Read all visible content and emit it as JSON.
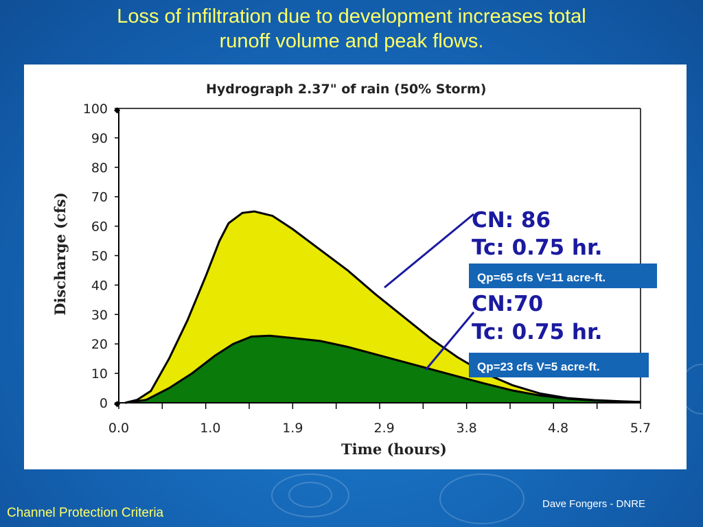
{
  "slide": {
    "title_line1": "Loss of infiltration due to development increases total",
    "title_line2": "runoff volume and peak flows.",
    "footer_left": "Channel Protection Criteria",
    "footer_right": "Dave Fongers - DNRE"
  },
  "colors": {
    "title": "#ffff66",
    "background": "#1565b5",
    "developed_fill": "#e8e800",
    "undeveloped_fill": "#0a7a0a",
    "callout_text": "#1a1aa0",
    "qp_box": "#1565b5"
  },
  "chart_data": {
    "type": "area",
    "title": "Hydrograph     2.37\" of rain (50% Storm)",
    "xlabel": "Time (hours)",
    "ylabel": "Discharge (cfs)",
    "xlim": [
      0,
      5.7
    ],
    "ylim": [
      0,
      100
    ],
    "x_ticks": [
      "0.0",
      "1.0",
      "1.9",
      "2.9",
      "3.8",
      "4.8",
      "5.7"
    ],
    "y_ticks": [
      "0",
      "10",
      "20",
      "30",
      "40",
      "50",
      "60",
      "70",
      "80",
      "90",
      "100"
    ],
    "grid": false,
    "series": [
      {
        "name": "CN: 86",
        "x": [
          0.07,
          0.2,
          0.35,
          0.55,
          0.75,
          0.95,
          1.1,
          1.2,
          1.35,
          1.48,
          1.68,
          1.9,
          2.2,
          2.5,
          2.8,
          3.1,
          3.4,
          3.7,
          4.0,
          4.3,
          4.6,
          4.9,
          5.2,
          5.5,
          5.7
        ],
        "y": [
          0,
          1,
          4,
          15,
          28,
          43,
          55,
          61,
          64.5,
          65,
          63.5,
          59,
          52,
          45,
          37,
          29.5,
          22,
          15.5,
          10,
          6,
          3.2,
          1.6,
          0.9,
          0.5,
          0.3
        ]
      },
      {
        "name": "CN:70",
        "x": [
          0.07,
          0.3,
          0.55,
          0.8,
          1.05,
          1.25,
          1.45,
          1.65,
          1.9,
          2.2,
          2.5,
          2.8,
          3.1,
          3.4,
          3.7,
          4.0,
          4.3,
          4.6,
          4.9,
          5.2,
          5.5,
          5.7
        ],
        "y": [
          0,
          1,
          5,
          10,
          16,
          20,
          22.5,
          22.8,
          22,
          21,
          19,
          16.5,
          14,
          11.5,
          9,
          6.5,
          4.2,
          2.5,
          1.4,
          0.8,
          0.4,
          0.3
        ]
      }
    ],
    "annotations": [
      {
        "line1": "CN: 86",
        "line2": "Tc: 0.75 hr.",
        "box": "Qp=65 cfs V=11 acre-ft."
      },
      {
        "line1": "CN:70",
        "line2": "Tc: 0.75 hr.",
        "box": "Qp=23 cfs V=5 acre-ft."
      }
    ]
  }
}
